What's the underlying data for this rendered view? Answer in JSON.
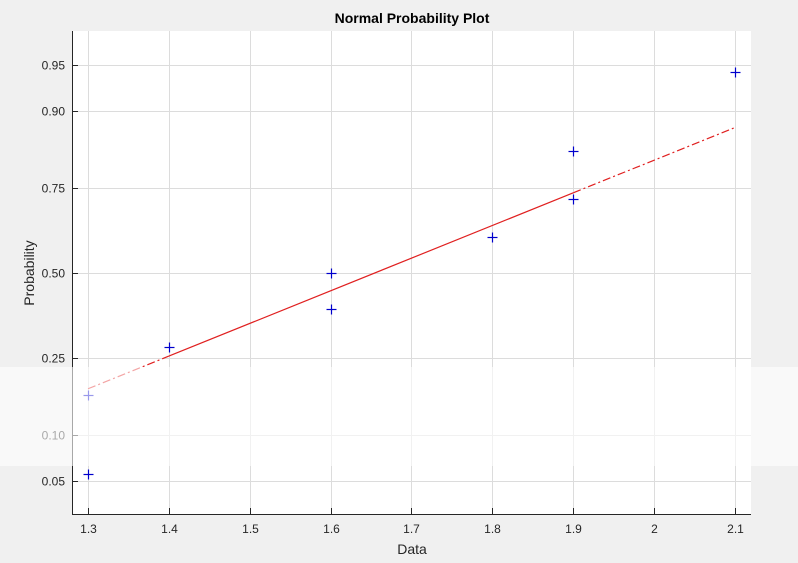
{
  "chart_data": {
    "type": "scatter",
    "title": "Normal Probability Plot",
    "xlabel": "Data",
    "ylabel": "Probability",
    "xlim": [
      1.28,
      2.12
    ],
    "x_ticks": [
      "1.3",
      "1.4",
      "1.5",
      "1.6",
      "1.7",
      "1.8",
      "1.9",
      "2",
      "2.1"
    ],
    "y_ticks": [
      "0.05",
      "0.10",
      "0.25",
      "0.50",
      "0.75",
      "0.90",
      "0.95"
    ],
    "y_scale": "normal-probability",
    "grid": true,
    "series": [
      {
        "name": "Data",
        "marker": "+",
        "color": "#0000cc",
        "points": [
          {
            "x": 1.3,
            "y": 0.056
          },
          {
            "x": 1.3,
            "y": 0.167
          },
          {
            "x": 1.4,
            "y": 0.278
          },
          {
            "x": 1.6,
            "y": 0.389
          },
          {
            "x": 1.6,
            "y": 0.5
          },
          {
            "x": 1.8,
            "y": 0.611
          },
          {
            "x": 1.9,
            "y": 0.722
          },
          {
            "x": 1.9,
            "y": 0.833
          },
          {
            "x": 2.1,
            "y": 0.944
          }
        ]
      },
      {
        "name": "Reference line",
        "type": "line",
        "color": "#e02020",
        "points": [
          {
            "x": 1.3,
            "y": 0.18
          },
          {
            "x": 2.1,
            "y": 0.875
          }
        ]
      }
    ]
  }
}
